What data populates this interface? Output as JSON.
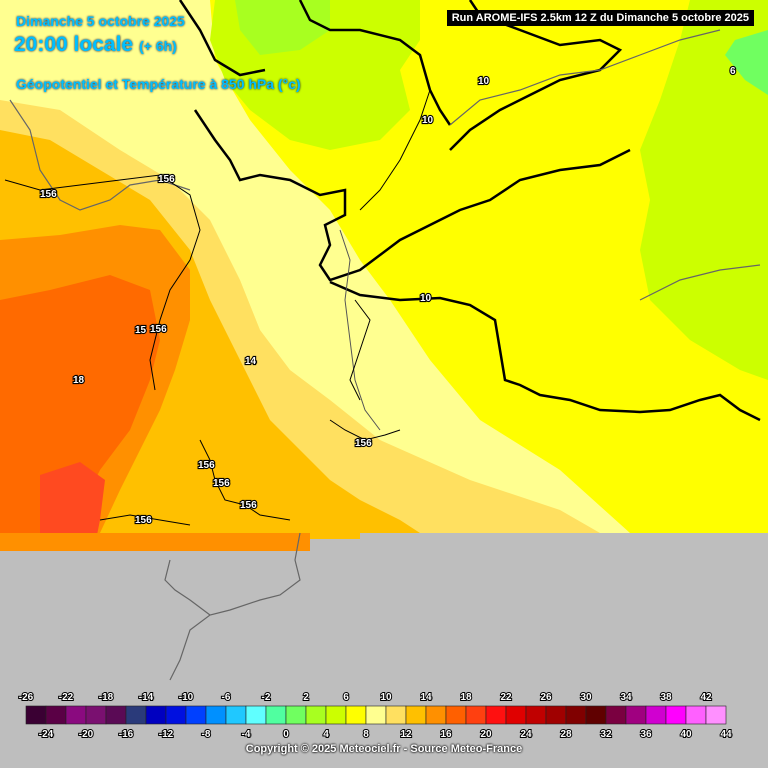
{
  "header": {
    "date": "Dimanche 5 octobre 2025",
    "local_time": "20:00 locale",
    "offset": "(+ 6h)",
    "field": "Géopotentiel et Température à 850 hPa (°c)",
    "run": "Run AROME-IFS 2.5km 12 Z du Dimanche 5 octobre 2025"
  },
  "contour_labels": {
    "geopotential": [
      "156",
      "156",
      "156",
      "15",
      "156",
      "156",
      "156",
      "156",
      "156",
      "156"
    ],
    "temperature": [
      "10",
      "10",
      "10",
      "6",
      "14",
      "18"
    ]
  },
  "legend": {
    "upper_labels": [
      "-26",
      "-22",
      "-18",
      "-14",
      "-10",
      "-6",
      "-2",
      "2",
      "6",
      "10",
      "14",
      "18",
      "22",
      "26",
      "30",
      "34",
      "38",
      "42"
    ],
    "lower_labels": [
      "-24",
      "-20",
      "-16",
      "-12",
      "-8",
      "-4",
      "0",
      "4",
      "8",
      "12",
      "16",
      "20",
      "24",
      "28",
      "32",
      "36",
      "40",
      "44"
    ],
    "colors": [
      "#3a0033",
      "#5a0045",
      "#8a0a7f",
      "#7a1070",
      "#5a0a55",
      "#2a3a7a",
      "#0000c0",
      "#0010e0",
      "#0040ff",
      "#0090ff",
      "#20c8ff",
      "#60ffff",
      "#50ffa0",
      "#70ff60",
      "#a8ff20",
      "#ccff00",
      "#ffff00",
      "#ffff90",
      "#ffe060",
      "#ffc000",
      "#ff9000",
      "#ff6000",
      "#ff4010",
      "#ff1010",
      "#e00000",
      "#c00000",
      "#a00000",
      "#800000",
      "#600000",
      "#7a0040",
      "#a00080",
      "#d000d0",
      "#ff00ff",
      "#ff60ff",
      "#ff90ff"
    ]
  },
  "copyright": "Copyright © 2025 Meteociel.fr - Source Meteo-France"
}
